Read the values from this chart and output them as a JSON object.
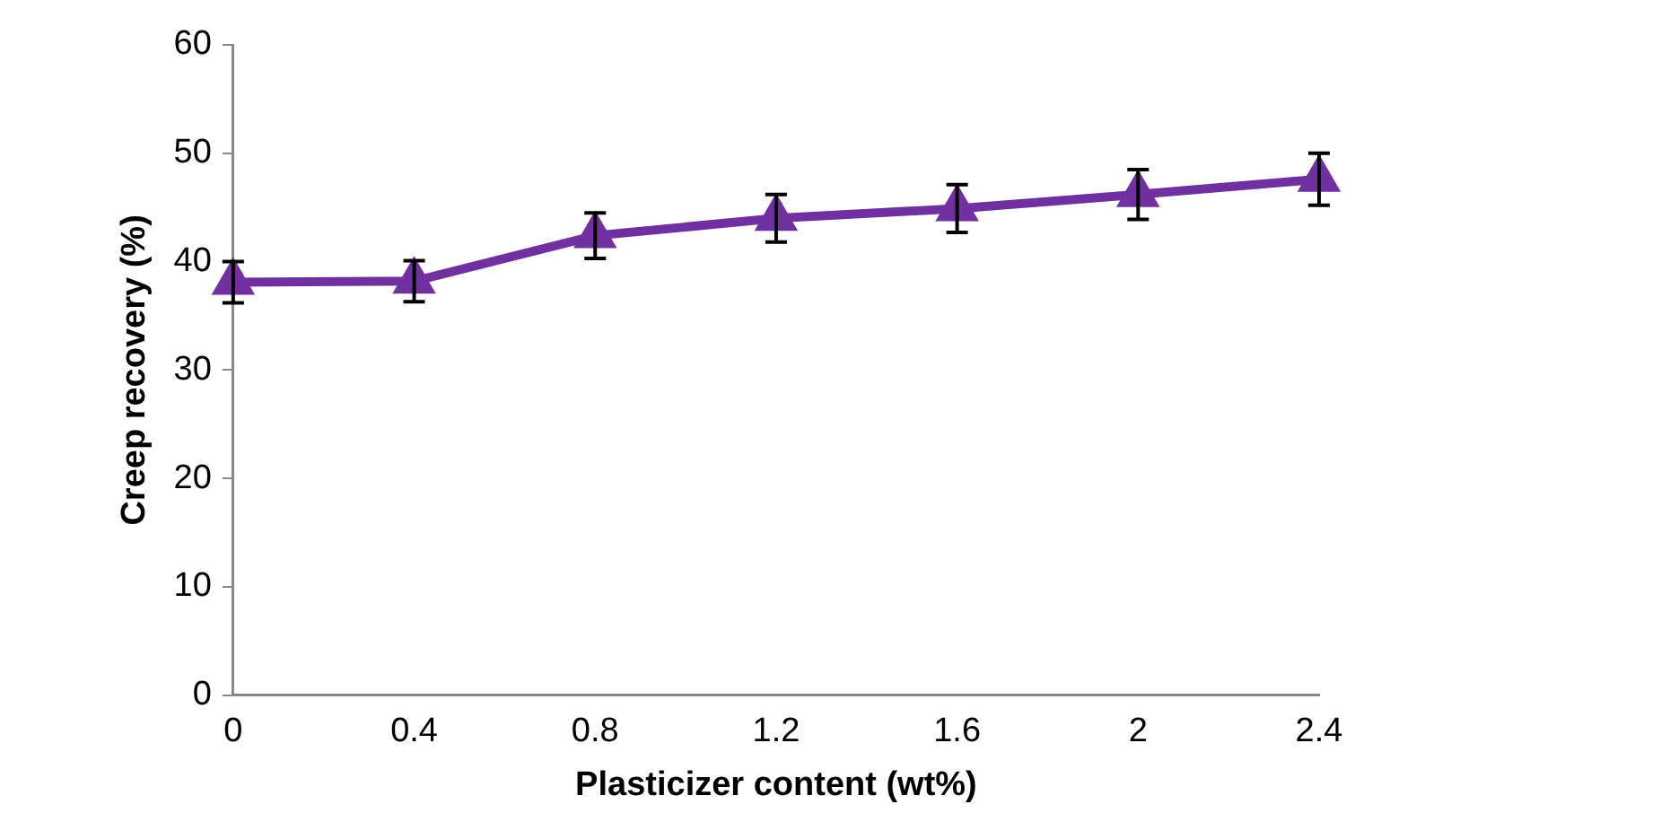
{
  "chart_data": {
    "type": "line",
    "xlabel": "Plasticizer content (wt%)",
    "ylabel": "Creep recovery (%)",
    "categories": [
      "0",
      "0.4",
      "0.8",
      "1.2",
      "1.6",
      "2",
      "2.4"
    ],
    "series": [
      {
        "color": "#7030a0",
        "values": [
          38.1,
          38.2,
          42.4,
          44,
          44.9,
          46.2,
          47.6
        ],
        "errors": [
          1.9,
          1.9,
          2.1,
          2.2,
          2.2,
          2.3,
          2.4
        ]
      }
    ],
    "ylim": [
      0,
      60
    ],
    "yticks": [
      0,
      10,
      20,
      30,
      40,
      50,
      60
    ],
    "grid": false,
    "legend": false,
    "marker": "triangle",
    "line_style": "solid"
  }
}
